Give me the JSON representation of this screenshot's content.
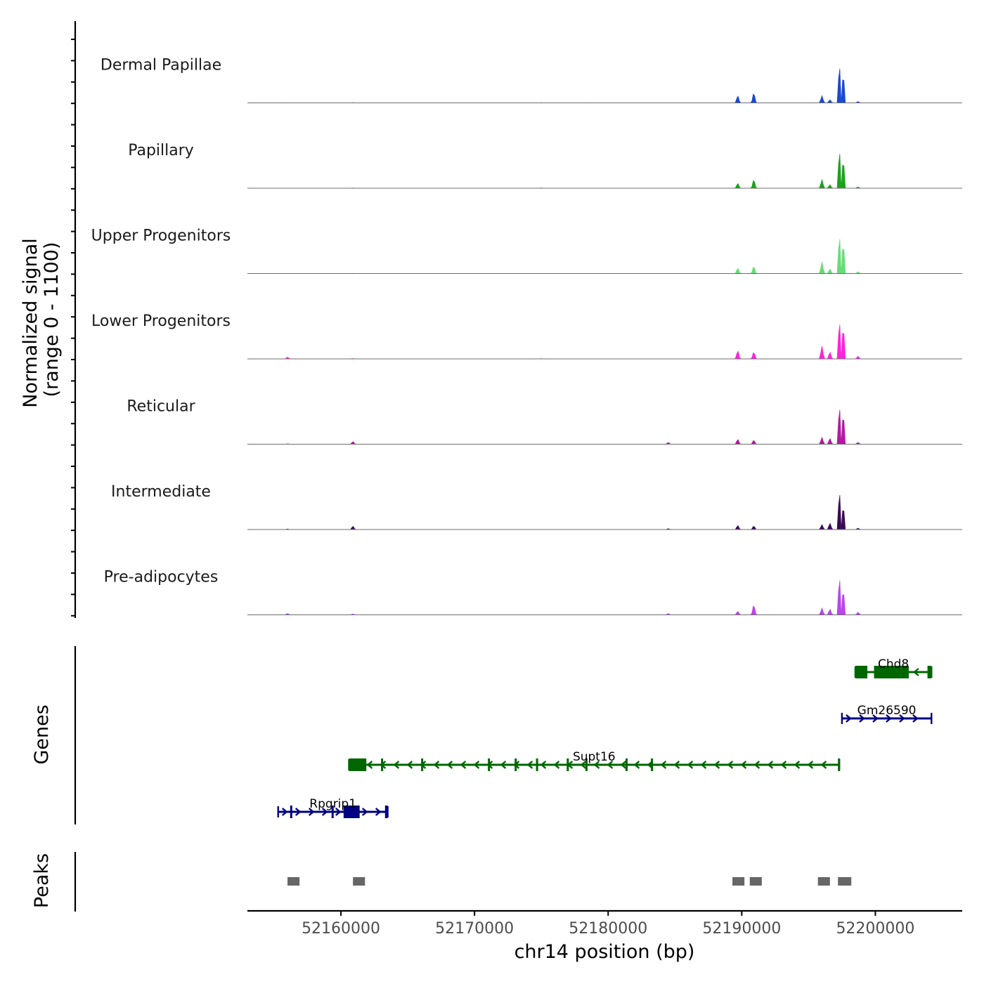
{
  "chart_data": {
    "type": "area",
    "title": "",
    "xlabel": "chr14 position (bp)",
    "ylabel_line1": "Normalized signal",
    "ylabel_line2": "(range 0 - 1100)",
    "ylim": [
      0,
      1100
    ],
    "xlim": [
      52153000,
      52206500
    ],
    "x_ticks": [
      52160000,
      52170000,
      52180000,
      52190000,
      52200000
    ],
    "x_tick_labels": [
      "52160000",
      "52170000",
      "52180000",
      "52190000",
      "52200000"
    ],
    "series": [
      {
        "name": "Dermal Papillae",
        "color": "#1a49d4",
        "peaks": [
          [
            52156000,
            4
          ],
          [
            52160900,
            6
          ],
          [
            52175000,
            6
          ],
          [
            52178500,
            5
          ],
          [
            52189700,
            160
          ],
          [
            52190900,
            220
          ],
          [
            52196000,
            160
          ],
          [
            52196600,
            70
          ],
          [
            52197300,
            1100
          ],
          [
            52197600,
            850
          ],
          [
            52198700,
            30
          ]
        ]
      },
      {
        "name": "Papillary",
        "color": "#1aa31a",
        "peaks": [
          [
            52156000,
            3
          ],
          [
            52160900,
            8
          ],
          [
            52175000,
            7
          ],
          [
            52189700,
            110
          ],
          [
            52190900,
            190
          ],
          [
            52196000,
            190
          ],
          [
            52196600,
            80
          ],
          [
            52197300,
            1100
          ],
          [
            52197600,
            850
          ],
          [
            52198700,
            30
          ]
        ]
      },
      {
        "name": "Upper Progenitors",
        "color": "#66dd77",
        "peaks": [
          [
            52156000,
            3
          ],
          [
            52160900,
            6
          ],
          [
            52175000,
            5
          ],
          [
            52189700,
            120
          ],
          [
            52190900,
            160
          ],
          [
            52196000,
            260
          ],
          [
            52196600,
            100
          ],
          [
            52197300,
            1100
          ],
          [
            52197600,
            900
          ],
          [
            52198700,
            40
          ]
        ]
      },
      {
        "name": "Lower Progenitors",
        "color": "#ff22dd",
        "peaks": [
          [
            52156000,
            40
          ],
          [
            52160900,
            10
          ],
          [
            52175000,
            8
          ],
          [
            52189700,
            180
          ],
          [
            52190900,
            150
          ],
          [
            52196000,
            280
          ],
          [
            52196600,
            150
          ],
          [
            52197300,
            1100
          ],
          [
            52197600,
            950
          ],
          [
            52198700,
            60
          ]
        ]
      },
      {
        "name": "Reticular",
        "color": "#b31aa3",
        "peaks": [
          [
            52156000,
            10
          ],
          [
            52160900,
            60
          ],
          [
            52184500,
            40
          ],
          [
            52189700,
            110
          ],
          [
            52190900,
            90
          ],
          [
            52196000,
            150
          ],
          [
            52196600,
            130
          ],
          [
            52197300,
            1100
          ],
          [
            52197600,
            900
          ],
          [
            52198700,
            40
          ]
        ]
      },
      {
        "name": "Intermediate",
        "color": "#3a0a55",
        "peaks": [
          [
            52156000,
            12
          ],
          [
            52160900,
            75
          ],
          [
            52184500,
            20
          ],
          [
            52189700,
            90
          ],
          [
            52190900,
            80
          ],
          [
            52196000,
            110
          ],
          [
            52196600,
            140
          ],
          [
            52197300,
            1100
          ],
          [
            52197600,
            700
          ],
          [
            52198700,
            30
          ]
        ]
      },
      {
        "name": "Pre-adipocytes",
        "color": "#bb44ee",
        "peaks": [
          [
            52156000,
            30
          ],
          [
            52160900,
            20
          ],
          [
            52184500,
            30
          ],
          [
            52189700,
            80
          ],
          [
            52190900,
            220
          ],
          [
            52196000,
            150
          ],
          [
            52196600,
            130
          ],
          [
            52197300,
            1100
          ],
          [
            52197600,
            750
          ],
          [
            52198700,
            60
          ]
        ]
      }
    ],
    "genes_label": "Genes",
    "genes": [
      {
        "name": "Chd8",
        "strand": "-",
        "color": "#006600",
        "start": 52198500,
        "end": 52204200,
        "exons": [
          [
            52198500,
            52199400
          ],
          [
            52199900,
            52201900
          ],
          [
            52201900,
            52202500
          ],
          [
            52203900,
            52204200
          ]
        ]
      },
      {
        "name": "Gm26590",
        "strand": "+",
        "color": "#000080",
        "start": 52197500,
        "end": 52204200,
        "exons": []
      },
      {
        "name": "Supt16",
        "strand": "-",
        "color": "#006600",
        "start": 52160600,
        "end": 52197300,
        "exons": [
          [
            52160600,
            52161900
          ],
          [
            52163000,
            52163100
          ],
          [
            52166000,
            52166100
          ],
          [
            52171000,
            52171150
          ],
          [
            52173000,
            52173100
          ],
          [
            52174600,
            52174700
          ],
          [
            52176900,
            52177000
          ],
          [
            52178300,
            52178400
          ],
          [
            52181300,
            52181400
          ],
          [
            52183200,
            52183300
          ],
          [
            52197200,
            52197300
          ]
        ]
      },
      {
        "name": "Rpgrip1",
        "strand": "+",
        "color": "#000080",
        "start": 52155300,
        "end": 52163500,
        "exons": [
          [
            52156200,
            52156300
          ],
          [
            52159300,
            52159400
          ],
          [
            52160200,
            52161400
          ],
          [
            52163300,
            52163500
          ]
        ]
      }
    ],
    "peaks_label": "Peaks",
    "peak_regions": [
      [
        52156000,
        52156900
      ],
      [
        52160900,
        52161800
      ],
      [
        52189300,
        52190200
      ],
      [
        52190600,
        52191500
      ],
      [
        52195700,
        52196600
      ],
      [
        52197200,
        52198200
      ]
    ]
  }
}
